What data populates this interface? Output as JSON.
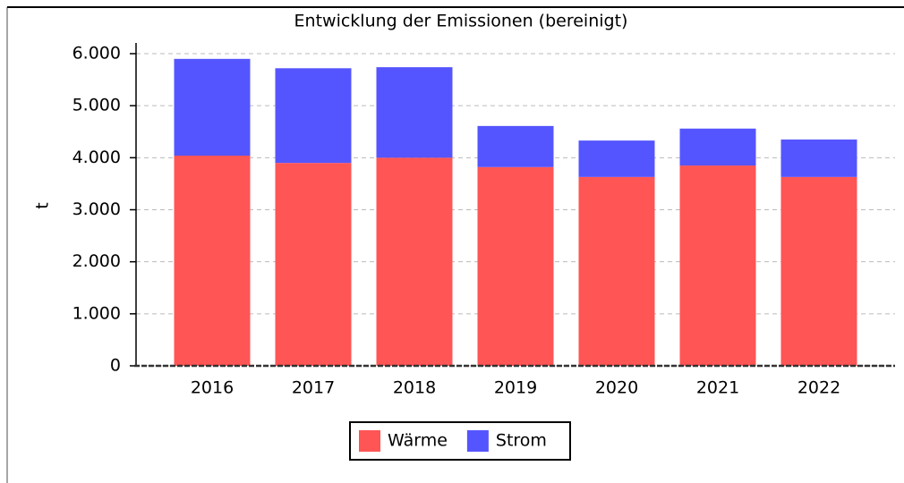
{
  "chart_data": {
    "type": "stacked_bar",
    "title": "Entwicklung der Emissionen (bereinigt)",
    "ylabel": "t",
    "categories": [
      "2016",
      "2017",
      "2018",
      "2019",
      "2020",
      "2021",
      "2022"
    ],
    "series": [
      {
        "name": "Wärme",
        "color": "#ff5555",
        "values": [
          4040,
          3900,
          4000,
          3820,
          3630,
          3850,
          3630
        ]
      },
      {
        "name": "Strom",
        "color": "#5555ff",
        "values": [
          1860,
          1820,
          1740,
          790,
          700,
          710,
          720
        ]
      }
    ],
    "ylim": [
      0,
      6000
    ],
    "yticks": [
      0,
      {
        "value": 1000,
        "label": "1.000"
      },
      {
        "value": 2000,
        "label": "2.000"
      },
      {
        "value": 3000,
        "label": "3.000"
      },
      {
        "value": 4000,
        "label": "4.000"
      },
      {
        "value": 5000,
        "label": "5.000"
      },
      {
        "value": 6000,
        "label": "6.000"
      }
    ],
    "grid": true,
    "legend": "bottom"
  }
}
